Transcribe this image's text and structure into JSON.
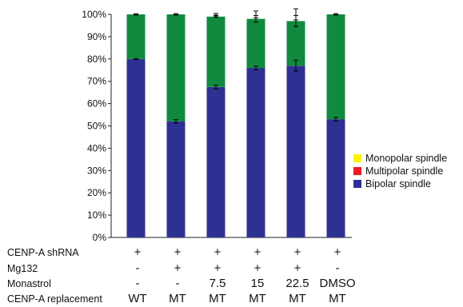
{
  "chart_data": {
    "type": "bar",
    "stacked": true,
    "ylim": [
      0,
      100
    ],
    "yticks": [
      "0%",
      "10%",
      "20%",
      "30%",
      "40%",
      "50%",
      "60%",
      "70%",
      "80%",
      "90%",
      "100%"
    ],
    "series": [
      {
        "name": "Bipolar spindle",
        "color": "#2e3192",
        "values": [
          80,
          52,
          67.5,
          76,
          77,
          53
        ],
        "errors": [
          0,
          0.8,
          0.8,
          0.8,
          2.5,
          0.8
        ]
      },
      {
        "name": "Multipolar spindle",
        "color": "#ed1c24",
        "values": [
          0,
          0,
          0,
          0,
          0,
          0
        ],
        "errors": [
          0,
          0,
          0,
          0,
          0,
          0
        ]
      },
      {
        "name": "Monopolar spindle",
        "color": "#fff200",
        "values": [
          0,
          0,
          1,
          2,
          3,
          0
        ],
        "errors": [
          0,
          0,
          0,
          0,
          0,
          0
        ]
      }
    ],
    "green_color": "#108a3f",
    "top_errors": [
      0,
      0.3,
      0.4,
      1.5,
      2.5,
      0.3
    ],
    "green_errors": [
      0,
      0,
      0.3,
      1.5,
      2.5,
      0
    ],
    "legend": {
      "placement": "right",
      "items": [
        {
          "label": "Monopolar spindle",
          "color": "#fff200"
        },
        {
          "label": "Multipolar spindle",
          "color": "#ed1c24"
        },
        {
          "label": "Bipolar spindle",
          "color": "#2e3192"
        }
      ]
    }
  },
  "conditions": [
    {
      "label": "CENP-A shRNA",
      "values": [
        "+",
        "+",
        "+",
        "+",
        "+",
        "+"
      ]
    },
    {
      "label": "Mg132",
      "values": [
        "-",
        "+",
        "+",
        "+",
        "+",
        "-"
      ]
    },
    {
      "label": "Monastrol",
      "values": [
        "-",
        "-",
        "7.5",
        "15",
        "22.5",
        "DMSO"
      ]
    },
    {
      "label": "CENP-A replacement",
      "values": [
        "WT",
        "MT",
        "MT",
        "MT",
        "MT",
        "MT"
      ]
    }
  ]
}
